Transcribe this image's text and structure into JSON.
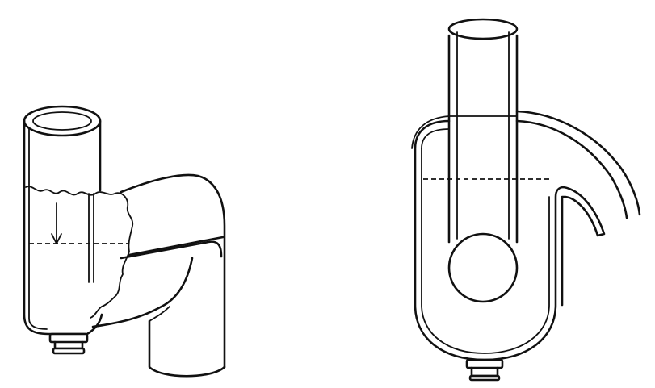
{
  "figure": {
    "panels": [
      {
        "id": "left",
        "description_icon": "cutaway-trap-icon"
      },
      {
        "id": "right",
        "description_icon": "ball-valve-trap-icon"
      }
    ],
    "colors": {
      "ink": "#111111",
      "paper": "#ffffff"
    }
  }
}
